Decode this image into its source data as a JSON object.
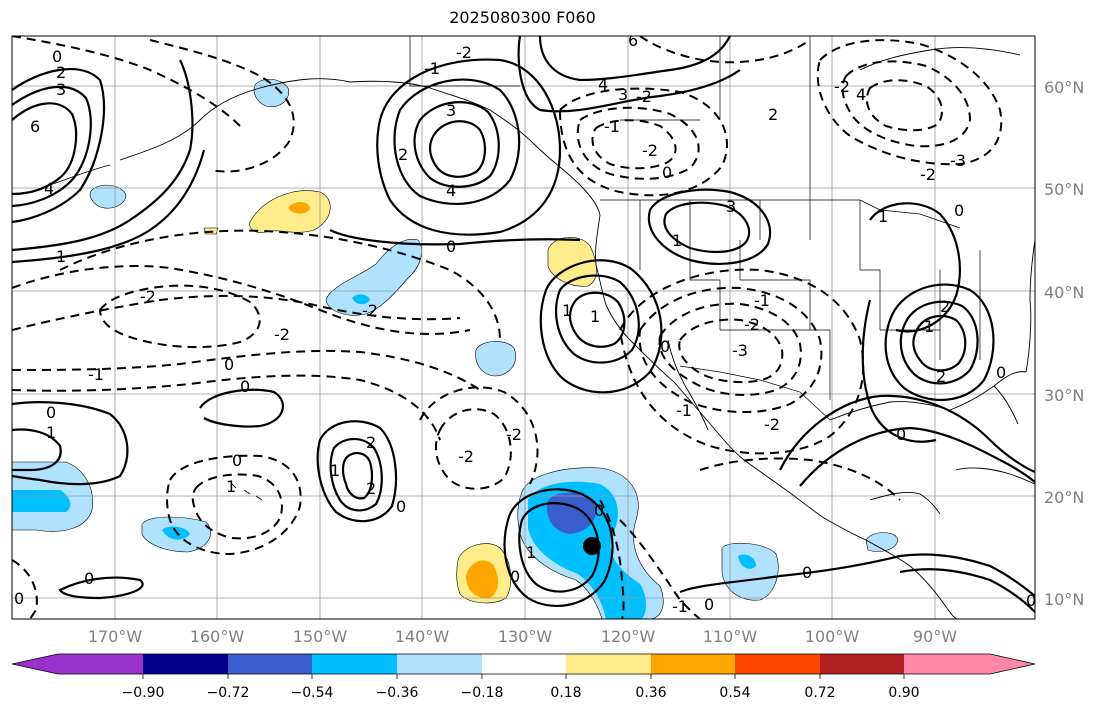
{
  "title": "2025080300 F060",
  "lat_labels": [
    "60°N",
    "50°N",
    "40°N",
    "30°N",
    "20°N",
    "10°N"
  ],
  "lon_labels": [
    "170°W",
    "160°W",
    "150°W",
    "140°W",
    "130°W",
    "120°W",
    "110°W",
    "100°W",
    "90°W"
  ],
  "colorbar": {
    "tick_labels": [
      "−0.90",
      "−0.72",
      "−0.54",
      "−0.36",
      "−0.18",
      "0.18",
      "0.36",
      "0.54",
      "0.72",
      "0.90"
    ],
    "colors": [
      "#9932cc",
      "#00008b",
      "#3a5fcd",
      "#00bfff",
      "#b0e2ff",
      "#ffffff",
      "#ffec8b",
      "#ffa500",
      "#ff4500",
      "#b22222",
      "#ff88aa"
    ]
  },
  "contour_labels": {
    "a": "0",
    "b": "2",
    "c": "3",
    "d": "6",
    "e": "4",
    "f": "1",
    "g": "-2",
    "h": "-1",
    "i": "-3",
    "j": "2",
    "k": "-2",
    "l": "0",
    "m": "-1",
    "n": "-2"
  }
}
